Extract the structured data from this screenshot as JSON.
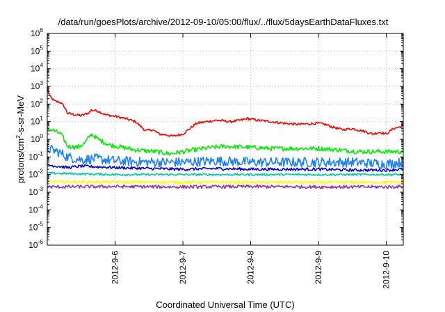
{
  "chart_data": {
    "type": "line",
    "title": "/data/run/goesPlots/archive/2012-09-10/05:00/flux/../flux/5daysEarthDataFluxes.txt",
    "xlabel": "Coordinated Universal Time (UTC)",
    "ylabel": "protons/cm2-s-sr-MeV",
    "ylabel_parts": {
      "before": "protons/cm",
      "sup": "2",
      "after": "-s-sr-MeV"
    },
    "yscale": "log",
    "ylim": [
      1e-06,
      1000000.0
    ],
    "xlim_days": [
      5.0,
      10.25
    ],
    "grid": true,
    "yticks": [
      {
        "exp": -6,
        "label": "10",
        "sup": "-6"
      },
      {
        "exp": -5,
        "label": "10",
        "sup": "-5"
      },
      {
        "exp": -4,
        "label": "10",
        "sup": "-4"
      },
      {
        "exp": -3,
        "label": "10",
        "sup": "-3"
      },
      {
        "exp": -2,
        "label": "10",
        "sup": "-2"
      },
      {
        "exp": -1,
        "label": "10",
        "sup": "-1"
      },
      {
        "exp": 0,
        "label": "10",
        "sup": "0"
      },
      {
        "exp": 1,
        "label": "10",
        "sup": "1"
      },
      {
        "exp": 2,
        "label": "10",
        "sup": "2"
      },
      {
        "exp": 3,
        "label": "10",
        "sup": "3"
      },
      {
        "exp": 4,
        "label": "10",
        "sup": "4"
      },
      {
        "exp": 5,
        "label": "10",
        "sup": "5"
      },
      {
        "exp": 6,
        "label": "10",
        "sup": "6"
      }
    ],
    "xticks": [
      {
        "day": 6,
        "label": "2012-9-6"
      },
      {
        "day": 7,
        "label": "2012-9-7"
      },
      {
        "day": 8,
        "label": "2012-9-8"
      },
      {
        "day": 9,
        "label": "2012-9-9"
      },
      {
        "day": 10,
        "label": "2012-9-10"
      }
    ],
    "series": [
      {
        "color": "#ff0000",
        "noise_decades": 0.07,
        "points": [
          [
            5.0,
            1000
          ],
          [
            5.03,
            300
          ],
          [
            5.1,
            150
          ],
          [
            5.2,
            120
          ],
          [
            5.25,
            70
          ],
          [
            5.3,
            30
          ],
          [
            5.4,
            25
          ],
          [
            5.5,
            22
          ],
          [
            5.6,
            30
          ],
          [
            5.65,
            45
          ],
          [
            5.75,
            40
          ],
          [
            5.85,
            25
          ],
          [
            6.0,
            20
          ],
          [
            6.15,
            15
          ],
          [
            6.3,
            10
          ],
          [
            6.45,
            3
          ],
          [
            6.55,
            3.5
          ],
          [
            6.65,
            2
          ],
          [
            6.75,
            1.8
          ],
          [
            6.85,
            1.5
          ],
          [
            7.0,
            2.0
          ],
          [
            7.1,
            4
          ],
          [
            7.2,
            8
          ],
          [
            7.35,
            10
          ],
          [
            7.5,
            12
          ],
          [
            7.7,
            10
          ],
          [
            7.85,
            12
          ],
          [
            7.95,
            15
          ],
          [
            8.1,
            12
          ],
          [
            8.3,
            10
          ],
          [
            8.5,
            8
          ],
          [
            8.7,
            7
          ],
          [
            9.0,
            8
          ],
          [
            9.1,
            7
          ],
          [
            9.2,
            5
          ],
          [
            9.35,
            3.5
          ],
          [
            9.5,
            4
          ],
          [
            9.65,
            3
          ],
          [
            9.8,
            2
          ],
          [
            9.9,
            2.5
          ],
          [
            10.0,
            2
          ],
          [
            10.1,
            4
          ],
          [
            10.2,
            5
          ],
          [
            10.25,
            6
          ]
        ]
      },
      {
        "color": "#00ee00",
        "noise_decades": 0.13,
        "points": [
          [
            5.0,
            4
          ],
          [
            5.1,
            3
          ],
          [
            5.2,
            2
          ],
          [
            5.3,
            0.4
          ],
          [
            5.45,
            0.35
          ],
          [
            5.55,
            0.6
          ],
          [
            5.65,
            2.0
          ],
          [
            5.75,
            1.0
          ],
          [
            5.9,
            0.5
          ],
          [
            6.1,
            0.35
          ],
          [
            6.3,
            0.25
          ],
          [
            6.6,
            0.2
          ],
          [
            6.8,
            0.15
          ],
          [
            7.0,
            0.2
          ],
          [
            7.3,
            0.3
          ],
          [
            7.6,
            0.4
          ],
          [
            8.0,
            0.35
          ],
          [
            8.3,
            0.3
          ],
          [
            8.6,
            0.3
          ],
          [
            9.0,
            0.3
          ],
          [
            9.3,
            0.25
          ],
          [
            9.6,
            0.2
          ],
          [
            10.0,
            0.2
          ],
          [
            10.25,
            0.2
          ]
        ]
      },
      {
        "color": "#1e7fff",
        "noise_decades": 0.28,
        "points": [
          [
            5.0,
            0.3
          ],
          [
            5.15,
            0.2
          ],
          [
            5.3,
            0.1
          ],
          [
            5.5,
            0.07
          ],
          [
            5.7,
            0.08
          ],
          [
            6.0,
            0.06
          ],
          [
            6.5,
            0.05
          ],
          [
            7.0,
            0.05
          ],
          [
            7.5,
            0.06
          ],
          [
            8.0,
            0.05
          ],
          [
            8.5,
            0.05
          ],
          [
            9.0,
            0.05
          ],
          [
            9.5,
            0.05
          ],
          [
            10.0,
            0.04
          ],
          [
            10.25,
            0.05
          ]
        ]
      },
      {
        "color": "#0000cc",
        "noise_decades": 0.08,
        "points": [
          [
            5.0,
            0.035
          ],
          [
            5.3,
            0.025
          ],
          [
            5.5,
            0.03
          ],
          [
            6.0,
            0.025
          ],
          [
            6.5,
            0.022
          ],
          [
            7.0,
            0.02
          ],
          [
            7.5,
            0.022
          ],
          [
            8.0,
            0.02
          ],
          [
            8.5,
            0.02
          ],
          [
            9.0,
            0.02
          ],
          [
            9.5,
            0.018
          ],
          [
            10.0,
            0.018
          ],
          [
            10.25,
            0.02
          ]
        ]
      },
      {
        "color": "#00c8a0",
        "noise_decades": 0.06,
        "points": [
          [
            5.0,
            0.012
          ],
          [
            5.5,
            0.011
          ],
          [
            6.0,
            0.01
          ],
          [
            7.0,
            0.01
          ],
          [
            8.0,
            0.01
          ],
          [
            9.0,
            0.01
          ],
          [
            10.0,
            0.01
          ],
          [
            10.25,
            0.01
          ]
        ]
      },
      {
        "color": "#ffff00",
        "noise_decades": 0.08,
        "points": [
          [
            5.0,
            0.004
          ],
          [
            6.0,
            0.0038
          ],
          [
            7.0,
            0.0037
          ],
          [
            8.0,
            0.0037
          ],
          [
            9.0,
            0.0036
          ],
          [
            10.0,
            0.0037
          ],
          [
            10.25,
            0.0037
          ]
        ]
      },
      {
        "color": "#993399",
        "noise_decades": 0.09,
        "points": [
          [
            5.0,
            0.002
          ],
          [
            6.0,
            0.0021
          ],
          [
            7.0,
            0.002
          ],
          [
            8.0,
            0.0021
          ],
          [
            9.0,
            0.002
          ],
          [
            10.0,
            0.002
          ],
          [
            10.25,
            0.0021
          ]
        ]
      }
    ]
  }
}
